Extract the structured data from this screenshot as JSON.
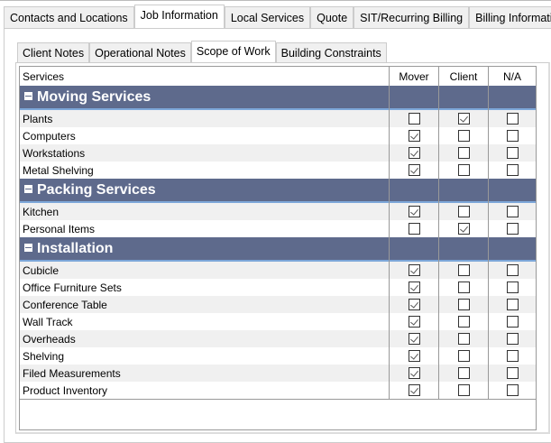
{
  "tabs": [
    "Contacts and Locations",
    "Job Information",
    "Local Services",
    "Quote",
    "SIT/Recurring Billing",
    "Billing Information"
  ],
  "active_tab": 1,
  "subtabs": [
    "Client Notes",
    "Operational Notes",
    "Scope of Work",
    "Building Constraints"
  ],
  "active_subtab": 2,
  "columns": {
    "services": "Services",
    "mover": "Mover",
    "client": "Client",
    "na": "N/A"
  },
  "groups": [
    {
      "title": "Moving Services",
      "items": [
        {
          "name": "Plants",
          "mover": false,
          "client": true,
          "na": false
        },
        {
          "name": "Computers",
          "mover": true,
          "client": false,
          "na": false
        },
        {
          "name": "Workstations",
          "mover": true,
          "client": false,
          "na": false
        },
        {
          "name": "Metal Shelving",
          "mover": true,
          "client": false,
          "na": false
        }
      ]
    },
    {
      "title": "Packing Services",
      "items": [
        {
          "name": "Kitchen",
          "mover": true,
          "client": false,
          "na": false
        },
        {
          "name": "Personal Items",
          "mover": false,
          "client": true,
          "na": false
        }
      ]
    },
    {
      "title": "Installation",
      "items": [
        {
          "name": "Cubicle",
          "mover": true,
          "client": false,
          "na": false
        },
        {
          "name": "Office Furniture Sets",
          "mover": true,
          "client": false,
          "na": false
        },
        {
          "name": "Conference Table",
          "mover": true,
          "client": false,
          "na": false
        },
        {
          "name": "Wall Track",
          "mover": true,
          "client": false,
          "na": false
        },
        {
          "name": "Overheads",
          "mover": true,
          "client": false,
          "na": false
        },
        {
          "name": "Shelving",
          "mover": true,
          "client": false,
          "na": false
        },
        {
          "name": "Filed Measurements",
          "mover": true,
          "client": false,
          "na": false
        },
        {
          "name": "Product Inventory",
          "mover": true,
          "client": false,
          "na": false
        }
      ]
    }
  ]
}
